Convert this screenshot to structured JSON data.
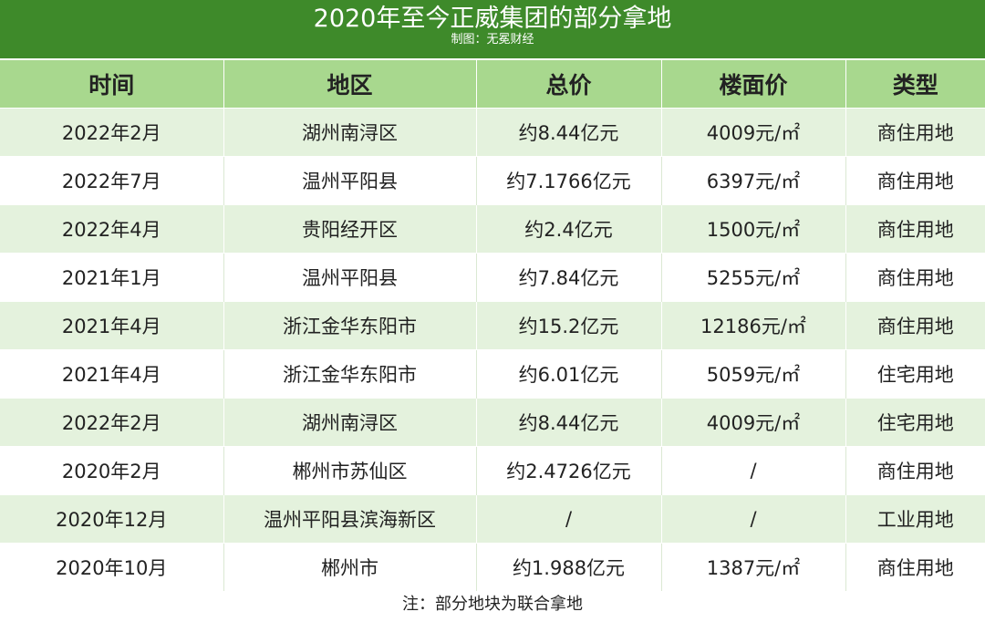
{
  "header": {
    "title": "2020年至今正威集团的部分拿地",
    "credit": "制图：无冕财经"
  },
  "table": {
    "columns": [
      "时间",
      "地区",
      "总价",
      "楼面价",
      "类型"
    ],
    "rows": [
      [
        "2022年2月",
        "湖州南浔区",
        "约8.44亿元",
        "4009元/㎡",
        "商住用地"
      ],
      [
        "2022年7月",
        "温州平阳县",
        "约7.1766亿元",
        "6397元/㎡",
        "商住用地"
      ],
      [
        "2022年4月",
        "贵阳经开区",
        "约2.4亿元",
        "1500元/㎡",
        "商住用地"
      ],
      [
        "2021年1月",
        "温州平阳县",
        "约7.84亿元",
        "5255元/㎡",
        "商住用地"
      ],
      [
        "2021年4月",
        "浙江金华东阳市",
        "约15.2亿元",
        "12186元/㎡",
        "商住用地"
      ],
      [
        "2021年4月",
        "浙江金华东阳市",
        "约6.01亿元",
        "5059元/㎡",
        "住宅用地"
      ],
      [
        "2022年2月",
        "湖州南浔区",
        "约8.44亿元",
        "4009元/㎡",
        "住宅用地"
      ],
      [
        "2020年2月",
        "郴州市苏仙区",
        "约2.4726亿元",
        "/",
        "商住用地"
      ],
      [
        "2020年12月",
        "温州平阳县滨海新区",
        "/",
        "/",
        "工业用地"
      ],
      [
        "2020年10月",
        "郴州市",
        "约1.988亿元",
        "1387元/㎡",
        "商住用地"
      ]
    ]
  },
  "footnote": "注：部分地块为联合拿地",
  "colors": {
    "header_bg": "#3e8a2a",
    "column_header_bg": "#a8d88e",
    "row_stripe": "#e4f2dd"
  }
}
